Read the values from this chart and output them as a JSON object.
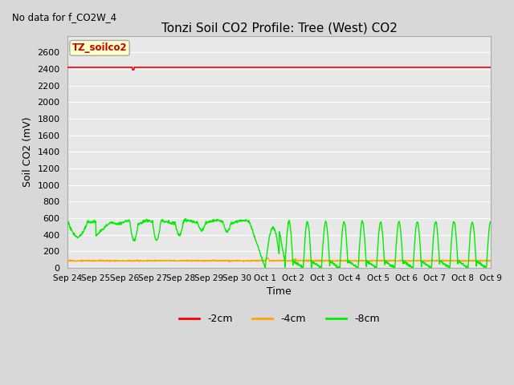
{
  "title": "Tonzi Soil CO2 Profile: Tree (West) CO2",
  "top_left_text": "No data for f_CO2W_4",
  "xlabel": "Time",
  "ylabel": "Soil CO2 (mV)",
  "ylim": [
    0,
    2800
  ],
  "yticks": [
    0,
    200,
    400,
    600,
    800,
    1000,
    1200,
    1400,
    1600,
    1800,
    2000,
    2200,
    2400,
    2600
  ],
  "bg_color": "#d8d8d8",
  "plot_bg_color": "#e8e8e8",
  "grid_color": "#ffffff",
  "legend_label": "TZ_soilco2",
  "legend_box_color": "#ffffcc",
  "legend_text_color": "#cc0000",
  "line_2cm_color": "#ff0000",
  "line_4cm_color": "#ffa500",
  "line_8cm_color": "#00ee00",
  "line_2cm_value": 2420,
  "x_tick_labels": [
    "Sep 24",
    "Sep 25",
    "Sep 26",
    "Sep 27",
    "Sep 28",
    "Sep 29",
    "Sep 30",
    "Oct 1",
    "Oct 2",
    "Oct 3",
    "Oct 4",
    "Oct 5",
    "Oct 6",
    "Oct 7",
    "Oct 8",
    "Oct 9"
  ]
}
